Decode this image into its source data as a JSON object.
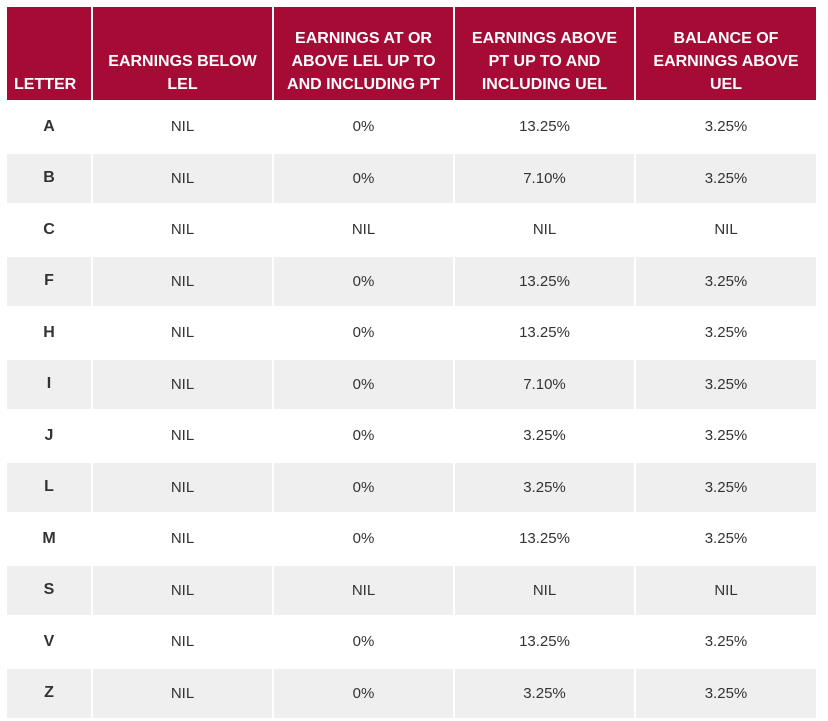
{
  "table": {
    "header": [
      "LETTER",
      "EARNINGS BELOW LEL",
      "EARNINGS AT OR ABOVE LEL UP TO AND INCLUDING PT",
      "EARNINGS ABOVE PT UP TO AND INCLUDING UEL",
      "BALANCE OF EARNINGS ABOVE UEL"
    ],
    "rows": [
      [
        "A",
        "NIL",
        "0%",
        "13.25%",
        "3.25%"
      ],
      [
        "B",
        "NIL",
        "0%",
        "7.10%",
        "3.25%"
      ],
      [
        "C",
        "NIL",
        "NIL",
        "NIL",
        "NIL"
      ],
      [
        "F",
        "NIL",
        "0%",
        "13.25%",
        "3.25%"
      ],
      [
        "H",
        "NIL",
        "0%",
        "13.25%",
        "3.25%"
      ],
      [
        "I",
        "NIL",
        "0%",
        "7.10%",
        "3.25%"
      ],
      [
        "J",
        "NIL",
        "0%",
        "3.25%",
        "3.25%"
      ],
      [
        "L",
        "NIL",
        "0%",
        "3.25%",
        "3.25%"
      ],
      [
        "M",
        "NIL",
        "0%",
        "13.25%",
        "3.25%"
      ],
      [
        "S",
        "NIL",
        "NIL",
        "NIL",
        "NIL"
      ],
      [
        "V",
        "NIL",
        "0%",
        "13.25%",
        "3.25%"
      ],
      [
        "Z",
        "NIL",
        "0%",
        "3.25%",
        "3.25%"
      ]
    ]
  }
}
